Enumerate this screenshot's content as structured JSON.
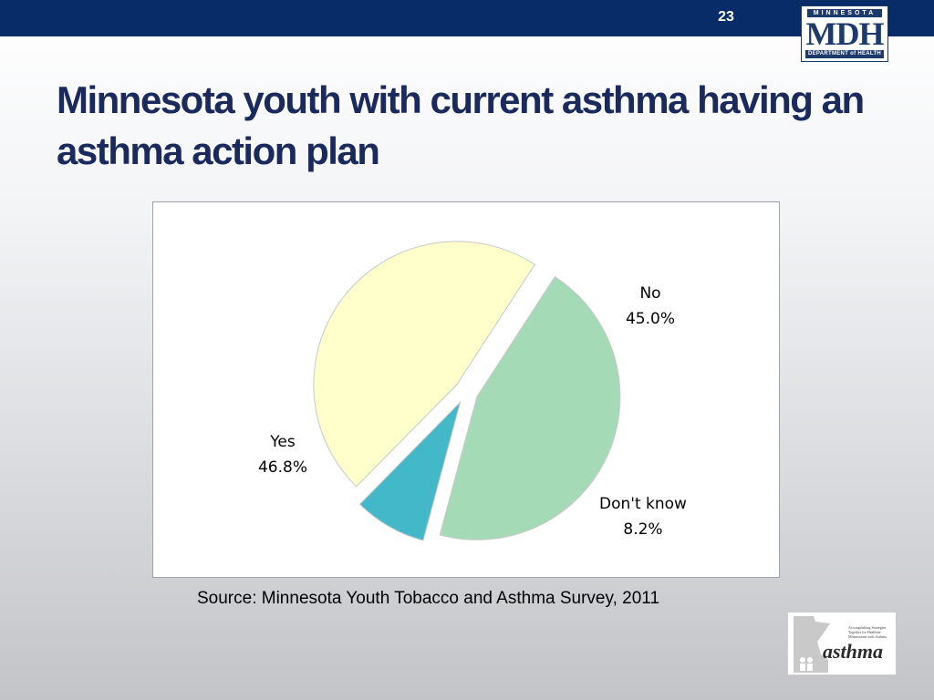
{
  "slide": {
    "number": "23",
    "title": "Minnesota youth with current asthma having an asthma action plan",
    "source": "Source: Minnesota Youth Tobacco and Asthma Survey, 2011"
  },
  "logo": {
    "top": "MINNESOTA",
    "main": "MDH",
    "bottom": "DEPARTMENT of HEALTH",
    "colors": {
      "navy": "#1d3a6c"
    }
  },
  "asthma_logo": {
    "word": "asthma",
    "tagline": "Accomplishing Strategies Together for Healthier Minnesotans with Asthma"
  },
  "colors": {
    "top_bar": "#072c67",
    "title": "#1b2a5c"
  },
  "chart_data": {
    "type": "pie",
    "title": "",
    "slices": [
      {
        "label": "No",
        "value": 45.0,
        "display": "45.0%",
        "color": "#a4dab5"
      },
      {
        "label": "Don't know",
        "value": 8.2,
        "display": "8.2%",
        "color": "#43b8c8"
      },
      {
        "label": "Yes",
        "value": 46.8,
        "display": "46.8%",
        "color": "#ffffcc"
      }
    ],
    "exploded": true,
    "legend": "none (labels beside slices)"
  }
}
